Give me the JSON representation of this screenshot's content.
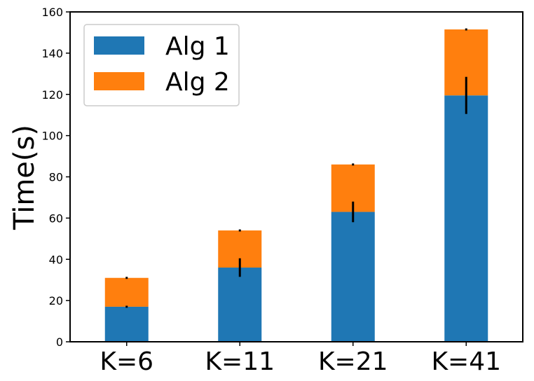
{
  "chart_data": {
    "type": "bar",
    "stacked": true,
    "categories": [
      "K=6",
      "K=11",
      "K=21",
      "K=41"
    ],
    "series": [
      {
        "name": "Alg 1",
        "color": "#1f77b4",
        "values": [
          17,
          36,
          63,
          119.5
        ],
        "error": [
          0.5,
          4.5,
          5,
          9
        ]
      },
      {
        "name": "Alg 2",
        "color": "#ff7f0e",
        "values": [
          14,
          18,
          23,
          32
        ],
        "error": [
          0.5,
          0.5,
          0.5,
          0.5
        ]
      }
    ],
    "ylabel": "Time(s)",
    "xlabel": "",
    "ylim": [
      0,
      160
    ],
    "yticks": [
      "0",
      "20",
      "40",
      "60",
      "80",
      "100",
      "120",
      "140",
      "160"
    ],
    "legend_position": "upper-left",
    "grid": false
  }
}
